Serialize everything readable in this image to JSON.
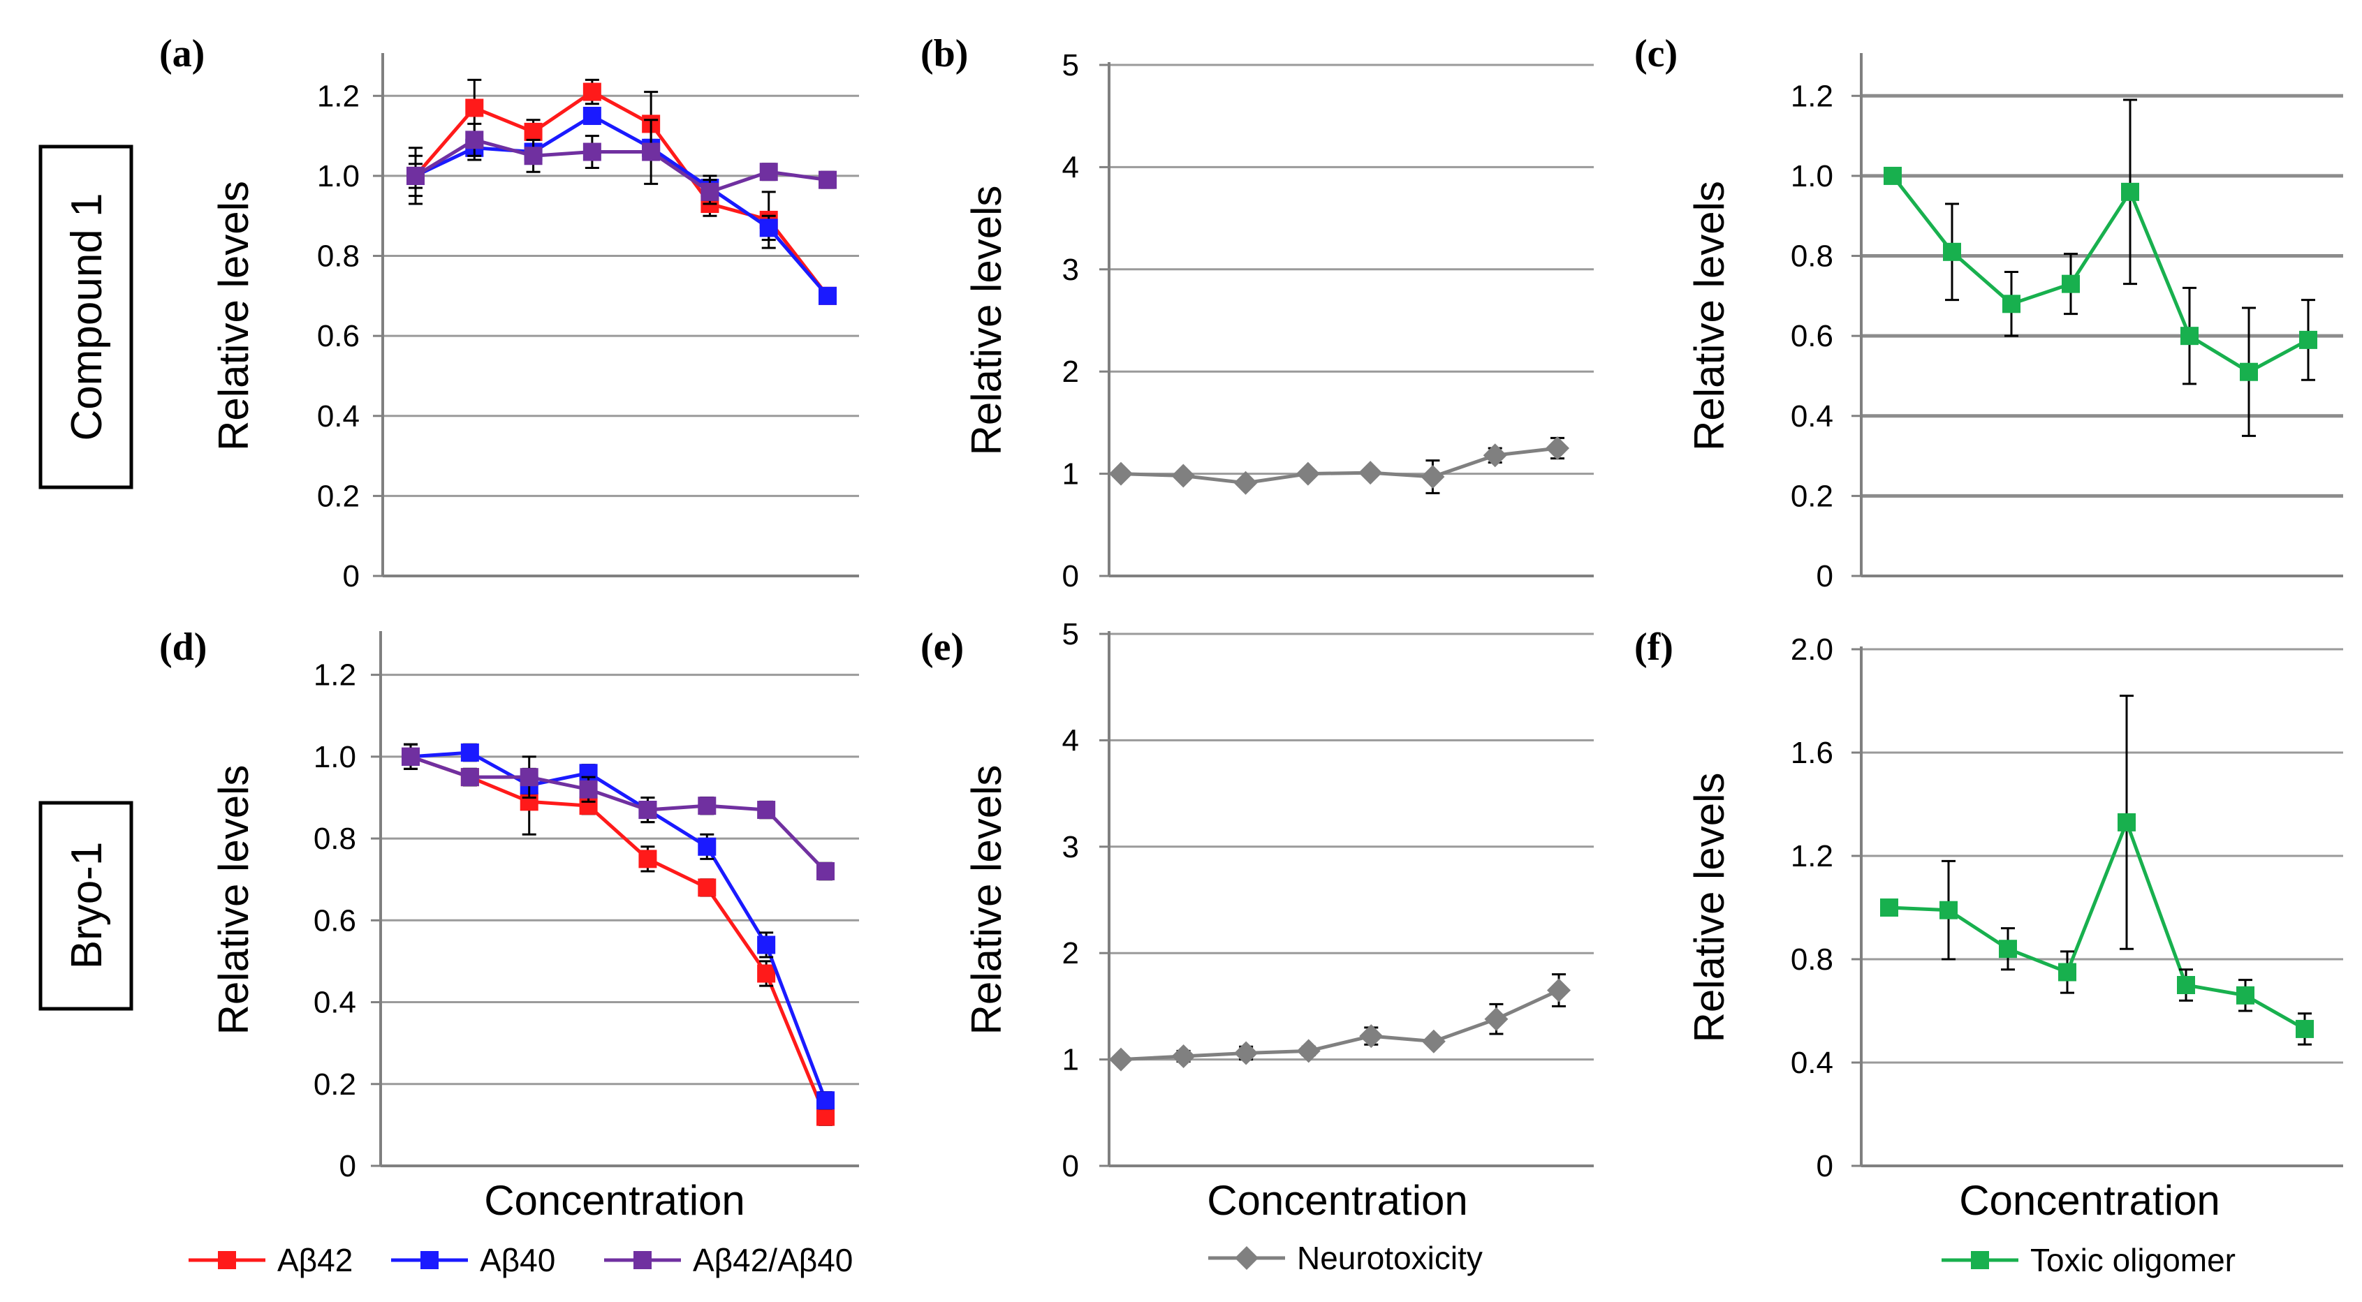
{
  "row_labels": {
    "top": "Compound 1",
    "bottom": "Bryo-1"
  },
  "legends": {
    "left": [
      {
        "label": "Aβ42",
        "color": "#FF1A1A",
        "marker": "square"
      },
      {
        "label": "Aβ40",
        "color": "#1A1AFF",
        "marker": "square"
      },
      {
        "label": "Aβ42/Aβ40",
        "color": "#7030A0",
        "marker": "square"
      }
    ],
    "middle": [
      {
        "label": "Neurotoxicity",
        "color": "#808080",
        "marker": "diamond"
      }
    ],
    "right": [
      {
        "label": "Toxic oligomer",
        "color": "#18B04E",
        "marker": "square"
      }
    ]
  },
  "chart_data": [
    {
      "panel": "(a)",
      "type": "line",
      "ylabel": "Relative levels",
      "xlabel": "",
      "ylim": [
        0,
        1.3
      ],
      "yticks": [
        "0",
        "0.2",
        "0.4",
        "0.6",
        "0.8",
        "1.0",
        "1.2"
      ],
      "ytick_values": [
        0,
        0.2,
        0.4,
        0.6,
        0.8,
        1.0,
        1.2
      ],
      "x_count": 8,
      "grid": true,
      "series": [
        {
          "name": "Aβ42",
          "color": "#FF1A1A",
          "marker": "square",
          "values": [
            1.0,
            1.17,
            1.11,
            1.21,
            1.13,
            0.93,
            0.89,
            0.7
          ],
          "errors": [
            0.05,
            0.07,
            0.03,
            0.03,
            0.08,
            0.03,
            0.07,
            0.01
          ]
        },
        {
          "name": "Aβ40",
          "color": "#1A1AFF",
          "marker": "square",
          "values": [
            1.0,
            1.07,
            1.06,
            1.15,
            1.07,
            0.97,
            0.87,
            0.7
          ],
          "errors": [
            0.03,
            0.03,
            0.02,
            0.02,
            0.02,
            0.03,
            0.03,
            0.01
          ]
        },
        {
          "name": "Aβ42/Aβ40",
          "color": "#7030A0",
          "marker": "square",
          "values": [
            1.0,
            1.09,
            1.05,
            1.06,
            1.06,
            0.96,
            1.01,
            0.99
          ],
          "errors": [
            0.07,
            0.04,
            0.04,
            0.04,
            0.08,
            0.03,
            0.02,
            0.02
          ]
        }
      ]
    },
    {
      "panel": "(b)",
      "type": "line",
      "ylabel": "Relative levels",
      "xlabel": "",
      "ylim": [
        0,
        5
      ],
      "yticks": [
        "0",
        "1",
        "2",
        "3",
        "4",
        "5"
      ],
      "ytick_values": [
        0,
        1,
        2,
        3,
        4,
        5
      ],
      "x_count": 8,
      "grid": true,
      "series": [
        {
          "name": "Neurotoxicity",
          "color": "#808080",
          "marker": "diamond",
          "values": [
            1.0,
            0.98,
            0.91,
            1.0,
            1.01,
            0.97,
            1.18,
            1.25
          ],
          "errors": [
            0.02,
            0.03,
            0.02,
            0.03,
            0.03,
            0.16,
            0.07,
            0.1
          ]
        }
      ]
    },
    {
      "panel": "(c)",
      "type": "line",
      "ylabel": "Relative levels",
      "xlabel": "",
      "ylim": [
        0,
        1.3
      ],
      "yticks": [
        "0",
        "0.2",
        "0.4",
        "0.6",
        "0.8",
        "1.0",
        "1.2"
      ],
      "ytick_values": [
        0,
        0.2,
        0.4,
        0.6,
        0.8,
        1.0,
        1.2
      ],
      "x_count": 8,
      "grid": true,
      "series": [
        {
          "name": "Toxic oligomer",
          "color": "#18B04E",
          "marker": "square",
          "values": [
            1.0,
            0.81,
            0.68,
            0.73,
            0.96,
            0.6,
            0.51,
            0.59
          ],
          "errors": [
            0.0,
            0.12,
            0.08,
            0.075,
            0.23,
            0.12,
            0.16,
            0.1
          ]
        }
      ]
    },
    {
      "panel": "(d)",
      "type": "line",
      "ylabel": "Relative levels",
      "xlabel": "Concentration",
      "ylim": [
        0,
        1.3
      ],
      "yticks": [
        "0",
        "0.2",
        "0.4",
        "0.6",
        "0.8",
        "1.0",
        "1.2"
      ],
      "ytick_values": [
        0,
        0.2,
        0.4,
        0.6,
        0.8,
        1.0,
        1.2
      ],
      "x_count": 8,
      "grid": true,
      "series": [
        {
          "name": "Aβ42",
          "color": "#FF1A1A",
          "marker": "square",
          "values": [
            1.0,
            0.95,
            0.89,
            0.88,
            0.75,
            0.68,
            0.47,
            0.12
          ],
          "errors": [
            0.03,
            0.02,
            0.08,
            0.02,
            0.03,
            0.02,
            0.03,
            0.02
          ]
        },
        {
          "name": "Aβ40",
          "color": "#1A1AFF",
          "marker": "square",
          "values": [
            1.0,
            1.01,
            0.93,
            0.96,
            0.87,
            0.78,
            0.54,
            0.16
          ],
          "errors": [
            0.03,
            0.02,
            0.02,
            0.02,
            0.03,
            0.03,
            0.03,
            0.02
          ]
        },
        {
          "name": "Aβ42/Aβ40",
          "color": "#7030A0",
          "marker": "square",
          "values": [
            1.0,
            0.95,
            0.95,
            0.92,
            0.87,
            0.88,
            0.87,
            0.72
          ],
          "errors": [
            0.03,
            0.02,
            0.05,
            0.03,
            0.03,
            0.02,
            0.02,
            0.02
          ]
        }
      ]
    },
    {
      "panel": "(e)",
      "type": "line",
      "ylabel": "Relative levels",
      "xlabel": "Concentration",
      "ylim": [
        0,
        5
      ],
      "yticks": [
        "0",
        "1",
        "2",
        "3",
        "4",
        "5"
      ],
      "ytick_values": [
        0,
        1,
        2,
        3,
        4,
        5
      ],
      "x_count": 8,
      "grid": true,
      "series": [
        {
          "name": "Neurotoxicity",
          "color": "#808080",
          "marker": "diamond",
          "values": [
            1.0,
            1.03,
            1.06,
            1.08,
            1.22,
            1.17,
            1.38,
            1.65
          ],
          "errors": [
            0.02,
            0.05,
            0.06,
            0.04,
            0.08,
            0.03,
            0.14,
            0.15
          ]
        }
      ]
    },
    {
      "panel": "(f)",
      "type": "line",
      "ylabel": "Relative levels",
      "xlabel": "Concentration",
      "ylim": [
        0,
        2.0
      ],
      "yticks": [
        "0",
        "0.4",
        "0.8",
        "1.2",
        "1.6",
        "2.0"
      ],
      "ytick_values": [
        0,
        0.4,
        0.8,
        1.2,
        1.6,
        2.0
      ],
      "x_count": 8,
      "grid": true,
      "series": [
        {
          "name": "Toxic oligomer",
          "color": "#18B04E",
          "marker": "square",
          "values": [
            1.0,
            0.99,
            0.84,
            0.75,
            1.33,
            0.7,
            0.66,
            0.53
          ],
          "errors": [
            0.0,
            0.19,
            0.08,
            0.08,
            0.49,
            0.06,
            0.06,
            0.06
          ]
        }
      ]
    }
  ]
}
